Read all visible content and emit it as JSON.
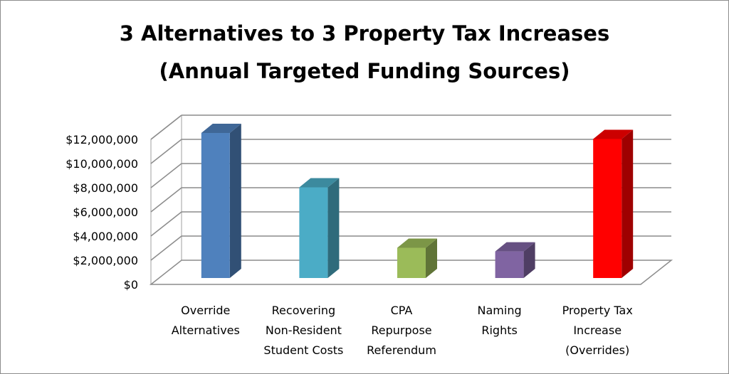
{
  "chart_data": {
    "type": "bar",
    "title": "3 Alternatives to 3 Property Tax Increases",
    "subtitle": "(Annual Targeted Funding Sources)",
    "categories": [
      [
        "Override",
        "Alternatives"
      ],
      [
        "Recovering",
        "Non-Resident",
        "Student Costs"
      ],
      [
        "CPA",
        "Repurpose",
        "Referendum"
      ],
      [
        "Naming",
        "Rights"
      ],
      [
        "Property Tax",
        "Increase",
        "(Overrides)"
      ]
    ],
    "values": [
      12000000,
      7500000,
      2500000,
      2200000,
      11500000
    ],
    "bar_colors": [
      "#4f81bd",
      "#4bacc6",
      "#9bbb59",
      "#8064a2",
      "#ff0000"
    ],
    "ylim": [
      0,
      12000000
    ],
    "yticks": [
      {
        "value": 0,
        "label": "$0"
      },
      {
        "value": 2000000,
        "label": "$2,000,000"
      },
      {
        "value": 4000000,
        "label": "$4,000,000"
      },
      {
        "value": 6000000,
        "label": "$6,000,000"
      },
      {
        "value": 8000000,
        "label": "$8,000,000"
      },
      {
        "value": 10000000,
        "label": "$10,000,000"
      },
      {
        "value": 12000000,
        "label": "$12,000,000"
      }
    ],
    "grid": true,
    "style": "3d-column"
  }
}
